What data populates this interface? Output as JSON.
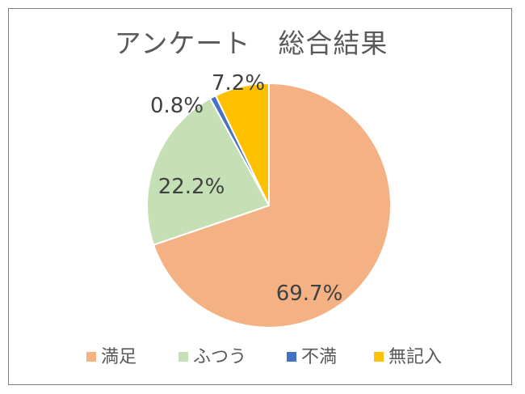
{
  "chart_data": {
    "type": "pie",
    "title": "アンケート　総合結果",
    "categories": [
      "満足",
      "ふつう",
      "不満",
      "無記入"
    ],
    "values": [
      69.7,
      22.2,
      0.8,
      7.2
    ],
    "data_labels": [
      "69.7%",
      "22.2%",
      "0.8%",
      "7.2%"
    ],
    "colors": [
      "#F4B183",
      "#C5E0B4",
      "#4472C4",
      "#FFC000"
    ],
    "start_angle_deg": 0,
    "direction": "clockwise",
    "legend_position": "bottom"
  }
}
